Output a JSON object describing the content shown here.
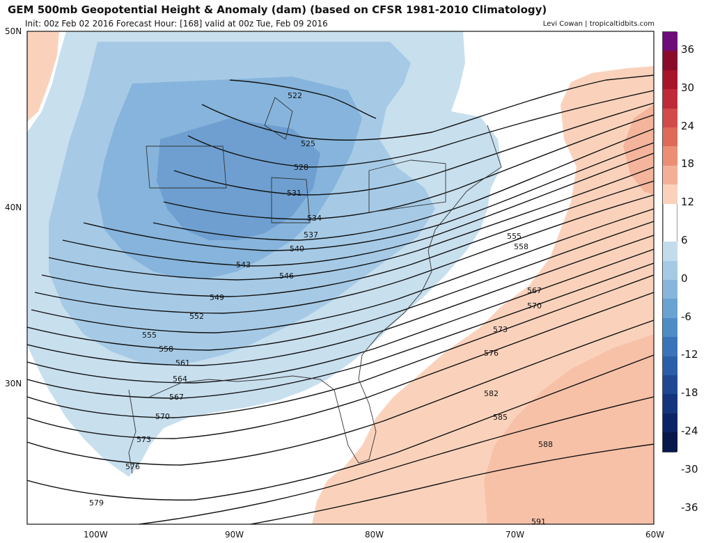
{
  "header": {
    "title": "GEM 500mb Geopotential Height & Anomaly (dam) (based on CFSR 1981-2010 Climatology)",
    "subtitle": "Init: 00z Feb 02 2016   Forecast Hour: [168]   valid at 00z Tue, Feb 09 2016",
    "credit": "Levi Cowan | tropicaltidbits.com"
  },
  "axes": {
    "lat_labels": [
      "50N",
      "40N",
      "30N"
    ],
    "lon_labels": [
      "100W",
      "90W",
      "80W",
      "70W",
      "60W"
    ]
  },
  "colorbar": {
    "ticks": [
      "36",
      "30",
      "24",
      "18",
      "12",
      "6",
      "0",
      "-6",
      "-12",
      "-18",
      "-24",
      "-30",
      "-36"
    ],
    "colors": [
      "#6e0c7a",
      "#8a0a2a",
      "#a8142c",
      "#c02a38",
      "#d24a4a",
      "#e06a5a",
      "#ec8e74",
      "#f4b096",
      "#fad2bc",
      "#ffffff",
      "#ffffff",
      "#c2dcec",
      "#a4cae4",
      "#86b6dc",
      "#6aa2d2",
      "#4e8cc6",
      "#3a74b8",
      "#2a5ea8",
      "#1e4894",
      "#14347e",
      "#0c2466",
      "#08174c"
    ],
    "anomaly_colors": {
      "neg6": "#c8dfee",
      "neg12": "#a6cae6",
      "neg18": "#86b4dc",
      "neg24": "#6e9fd0",
      "pos6": "#fad2bc",
      "pos12": "#f4b59c"
    }
  },
  "contours": {
    "labels": [
      "522",
      "525",
      "528",
      "531",
      "534",
      "537",
      "540",
      "543",
      "546",
      "549",
      "552",
      "555",
      "558",
      "561",
      "564",
      "567",
      "570",
      "573",
      "576",
      "579",
      "555",
      "558",
      "567",
      "570",
      "573",
      "576",
      "582",
      "585",
      "588",
      "591"
    ]
  }
}
